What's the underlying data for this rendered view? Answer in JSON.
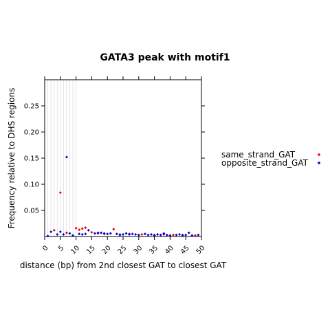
{
  "chart_data": {
    "type": "scatter",
    "title": "GATA3 peak with motif1",
    "xlabel": "distance (bp) from 2nd closest GAT to closest GAT",
    "ylabel": "Frequency relative to DHS regions",
    "xlim": [
      0,
      50
    ],
    "ylim": [
      0,
      0.3
    ],
    "x_ticks": [
      0,
      5,
      10,
      15,
      20,
      25,
      30,
      35,
      40,
      45,
      50
    ],
    "x_tick_labels": [
      "0",
      "5",
      "10",
      "15",
      "20",
      "25",
      "30",
      "35",
      "40",
      "45",
      "50"
    ],
    "y_ticks": [
      0.05,
      0.1,
      0.15,
      0.2,
      0.25
    ],
    "y_tick_labels": [
      "0.05",
      "0.10",
      "0.15",
      "0.20",
      "0.25"
    ],
    "vertical_gridlines_x": [
      1,
      2,
      3,
      4,
      5,
      6,
      7,
      8,
      9,
      10
    ],
    "legend_position": "right",
    "series": [
      {
        "name": "same_strand_GAT",
        "color": "#e8000b",
        "x": [
          3,
          5,
          7,
          10,
          11,
          12,
          13,
          15,
          17,
          19,
          22,
          24,
          27,
          31,
          35,
          38,
          41,
          44,
          48
        ],
        "y": [
          0.012,
          0.084,
          0.007,
          0.016,
          0.013,
          0.015,
          0.017,
          0.008,
          0.006,
          0.005,
          0.014,
          0.004,
          0.005,
          0.004,
          0.003,
          0.004,
          0.003,
          0.003,
          0.002
        ]
      },
      {
        "name": "opposite_strand_GAT",
        "color": "#0000cc",
        "x": [
          1,
          2,
          4,
          5,
          6,
          7,
          8,
          9,
          11,
          12,
          13,
          14,
          16,
          17,
          18,
          19,
          20,
          21,
          23,
          24,
          25,
          26,
          27,
          28,
          29,
          30,
          32,
          33,
          34,
          35,
          36,
          37,
          38,
          39,
          40,
          42,
          43,
          44,
          45,
          46,
          47,
          49
        ],
        "y": [
          0.001,
          0.009,
          0.004,
          0.009,
          0.004,
          0.152,
          0.006,
          0.002,
          0.005,
          0.004,
          0.005,
          0.012,
          0.006,
          0.007,
          0.007,
          0.006,
          0.005,
          0.006,
          0.005,
          0.003,
          0.004,
          0.006,
          0.004,
          0.005,
          0.004,
          0.003,
          0.005,
          0.003,
          0.004,
          0.002,
          0.004,
          0.003,
          0.006,
          0.003,
          0.002,
          0.003,
          0.004,
          0.002,
          0.003,
          0.007,
          0.002,
          0.003
        ]
      }
    ]
  }
}
